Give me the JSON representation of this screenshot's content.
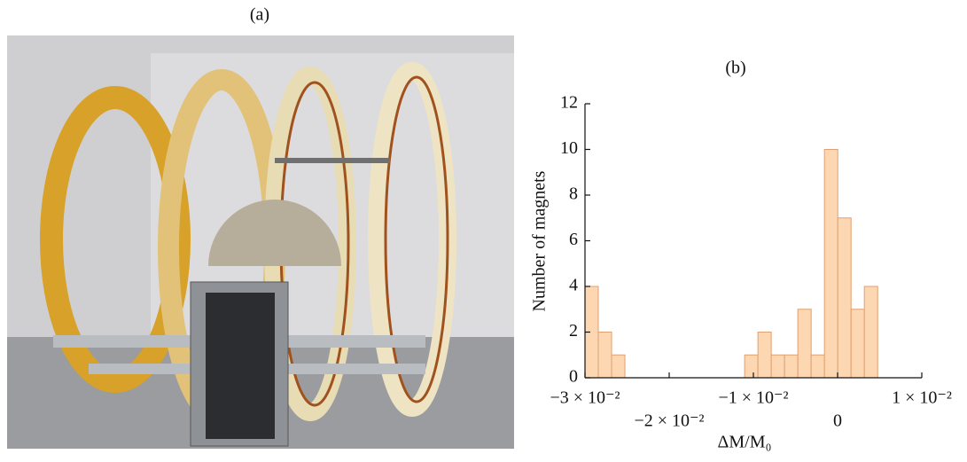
{
  "figure_label_a": "(a)",
  "chart_data": {
    "type": "histogram",
    "title": "(b)",
    "xlabel": "ΔM/M₀",
    "ylabel": "Number of magnets",
    "bins": [
      -0.03,
      -0.02842,
      -0.02684,
      -0.02526,
      -0.02368,
      -0.0221,
      -0.02052,
      -0.01894,
      -0.01736,
      -0.01578,
      -0.0142,
      -0.01262,
      -0.01104,
      -0.00946,
      -0.00788,
      -0.0063,
      -0.00472,
      -0.00314,
      -0.00156,
      2e-05,
      0.0016,
      0.00318,
      0.00476
    ],
    "values": [
      4,
      2,
      1,
      0,
      0,
      0,
      0,
      0,
      0,
      0,
      0,
      0,
      1,
      2,
      1,
      1,
      3,
      1,
      10,
      7,
      3,
      4
    ],
    "color": "#fdd7b2",
    "edgecolor": "#e0a070",
    "xlim": [
      -0.03,
      0.01
    ],
    "xticks": [
      {
        "value": -0.03,
        "label": "−3 × 10⁻²"
      },
      {
        "value": -0.02,
        "label": "−2 × 10⁻²"
      },
      {
        "value": -0.01,
        "label": "−1 × 10⁻²"
      },
      0,
      {
        "value": 0.01,
        "label": "1 × 10⁻²"
      }
    ],
    "ylim": [
      0,
      12
    ],
    "yticks": [
      0,
      2,
      4,
      6,
      8,
      10,
      12
    ]
  }
}
